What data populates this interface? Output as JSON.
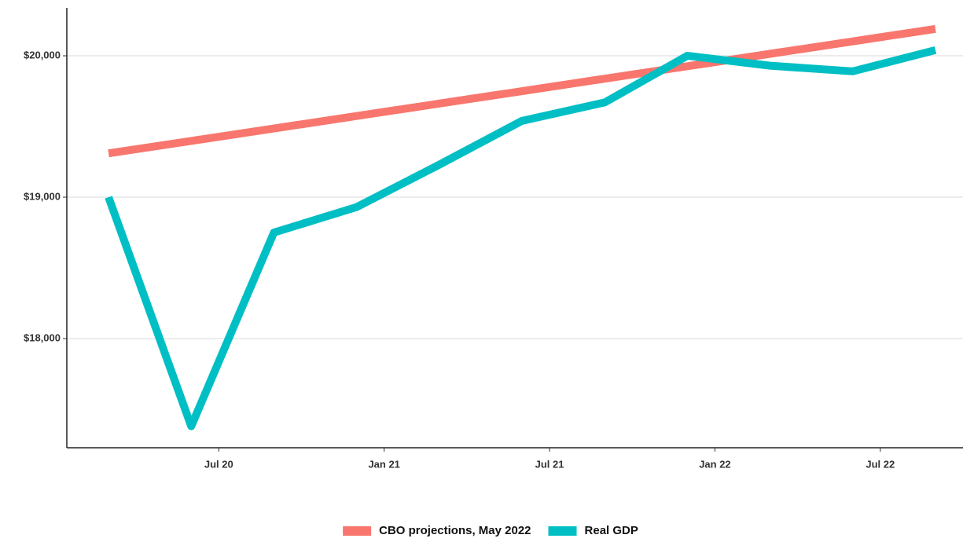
{
  "chart_data": {
    "type": "line",
    "x": [
      "2020-03",
      "2020-06",
      "2020-09",
      "2020-12",
      "2021-03",
      "2021-06",
      "2021-09",
      "2021-12",
      "2022-03",
      "2022-06",
      "2022-09"
    ],
    "series": [
      {
        "name": "CBO projections, May 2022",
        "color": "#f8766d",
        "values": [
          19310,
          19398,
          19486,
          19574,
          19662,
          19750,
          19838,
          19926,
          20014,
          20102,
          20190
        ]
      },
      {
        "name": "Real GDP",
        "color": "#00bfc4",
        "values": [
          19000,
          17380,
          18750,
          18930,
          19230,
          19540,
          19670,
          20000,
          19930,
          19890,
          20040
        ]
      }
    ],
    "xlim": [
      "2020-02",
      "2022-10"
    ],
    "xticks": [
      {
        "value": "2020-07",
        "label": "Jul 20"
      },
      {
        "value": "2021-01",
        "label": "Jan 21"
      },
      {
        "value": "2021-07",
        "label": "Jul 21"
      },
      {
        "value": "2022-01",
        "label": "Jan 22"
      },
      {
        "value": "2022-07",
        "label": "Jul 22"
      }
    ],
    "ylim": [
      17228,
      20339
    ],
    "yticks": [
      {
        "value": 18000,
        "label": "$18,000"
      },
      {
        "value": 19000,
        "label": "$19,000"
      },
      {
        "value": 20000,
        "label": "$20,000"
      }
    ],
    "grid": true,
    "legend": "bottom"
  }
}
